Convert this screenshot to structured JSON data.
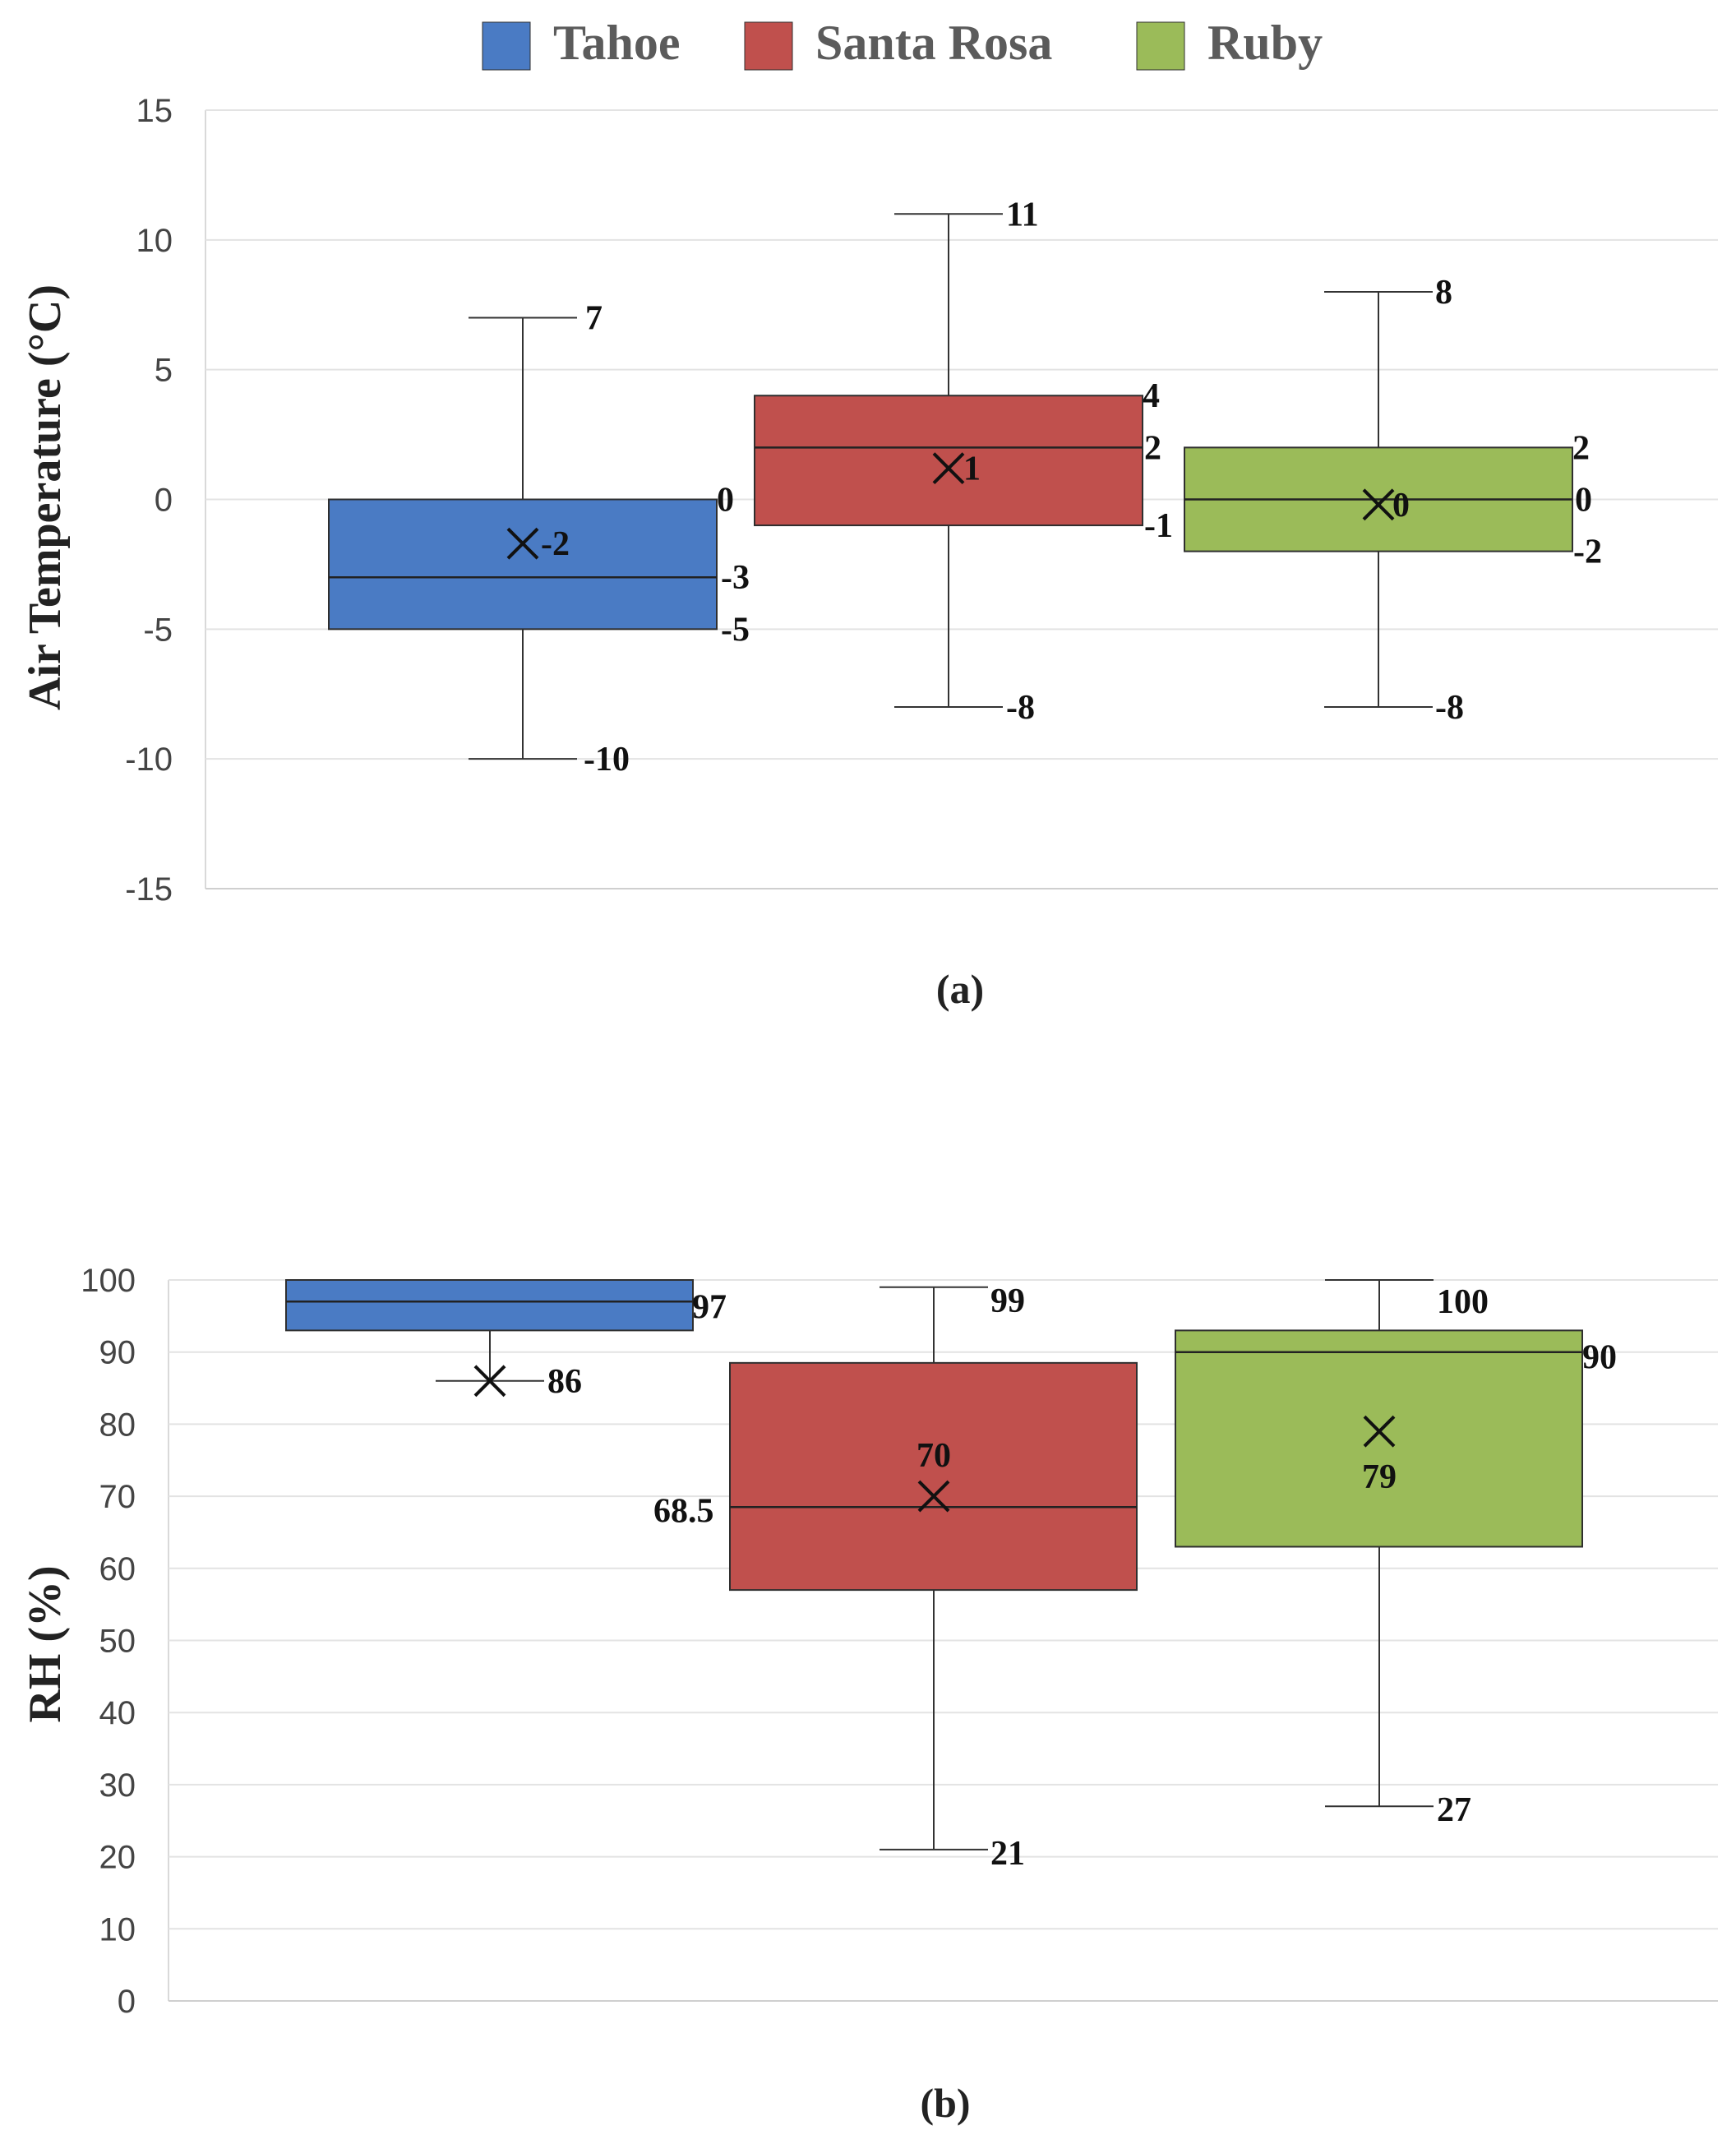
{
  "legend": [
    {
      "name": "Tahoe",
      "color": "#4a7bc4"
    },
    {
      "name": "Santa Rosa",
      "color": "#c0504d"
    },
    {
      "name": "Ruby",
      "color": "#9bbb59"
    }
  ],
  "chart_data": [
    {
      "type": "box",
      "panel_label": "(a)",
      "ylabel": "Air Temperature  (°C)",
      "ylim": [
        -15,
        15
      ],
      "yticks": [
        15,
        10,
        5,
        0,
        -5,
        -10,
        -15
      ],
      "grid": true,
      "categories": [
        "Tahoe",
        "Santa Rosa",
        "Ruby"
      ],
      "series": [
        {
          "name": "Tahoe",
          "min": -10,
          "q1": -5,
          "median": -3,
          "q3": 0,
          "max": 7,
          "mean": -1.7,
          "labels": {
            "max": "7",
            "q3": "0",
            "median": "-3",
            "q1": "-5",
            "min": "-10",
            "mean": "-2"
          }
        },
        {
          "name": "Santa Rosa",
          "min": -8,
          "q1": -1,
          "median": 2,
          "q3": 4,
          "max": 11,
          "mean": 1.2,
          "labels": {
            "max": "11",
            "q3": "4",
            "median": "2",
            "q1": "-1",
            "min": "-8",
            "mean": "1"
          }
        },
        {
          "name": "Ruby",
          "min": -8,
          "q1": -2,
          "median": 0,
          "q3": 2,
          "max": 8,
          "mean": -0.2,
          "labels": {
            "max": "8",
            "q3": "2",
            "median": "0",
            "q1": "-2",
            "min": "-8",
            "mean": "0"
          }
        }
      ]
    },
    {
      "type": "box",
      "panel_label": "(b)",
      "ylabel": "RH (%)",
      "ylim": [
        0,
        100
      ],
      "yticks": [
        100,
        90,
        80,
        70,
        60,
        50,
        40,
        30,
        20,
        10,
        0
      ],
      "grid": true,
      "categories": [
        "Tahoe",
        "Santa Rosa",
        "Ruby"
      ],
      "series": [
        {
          "name": "Tahoe",
          "min": 86,
          "q1": 93,
          "median": 97,
          "q3": 100,
          "max": 100,
          "mean": 86,
          "labels": {
            "median": "97",
            "mean": "86"
          }
        },
        {
          "name": "Santa Rosa",
          "min": 21,
          "q1": 57,
          "median": 68.5,
          "q3": 88.5,
          "max": 99,
          "mean": 70,
          "labels": {
            "max": "99",
            "median": "68.5",
            "mean": "70",
            "min": "21"
          }
        },
        {
          "name": "Ruby",
          "min": 27,
          "q1": 63,
          "median": 90,
          "q3": 93,
          "max": 100,
          "mean": 79,
          "labels": {
            "max": "100",
            "median": "90",
            "mean": "79",
            "min": "27"
          }
        }
      ]
    }
  ]
}
